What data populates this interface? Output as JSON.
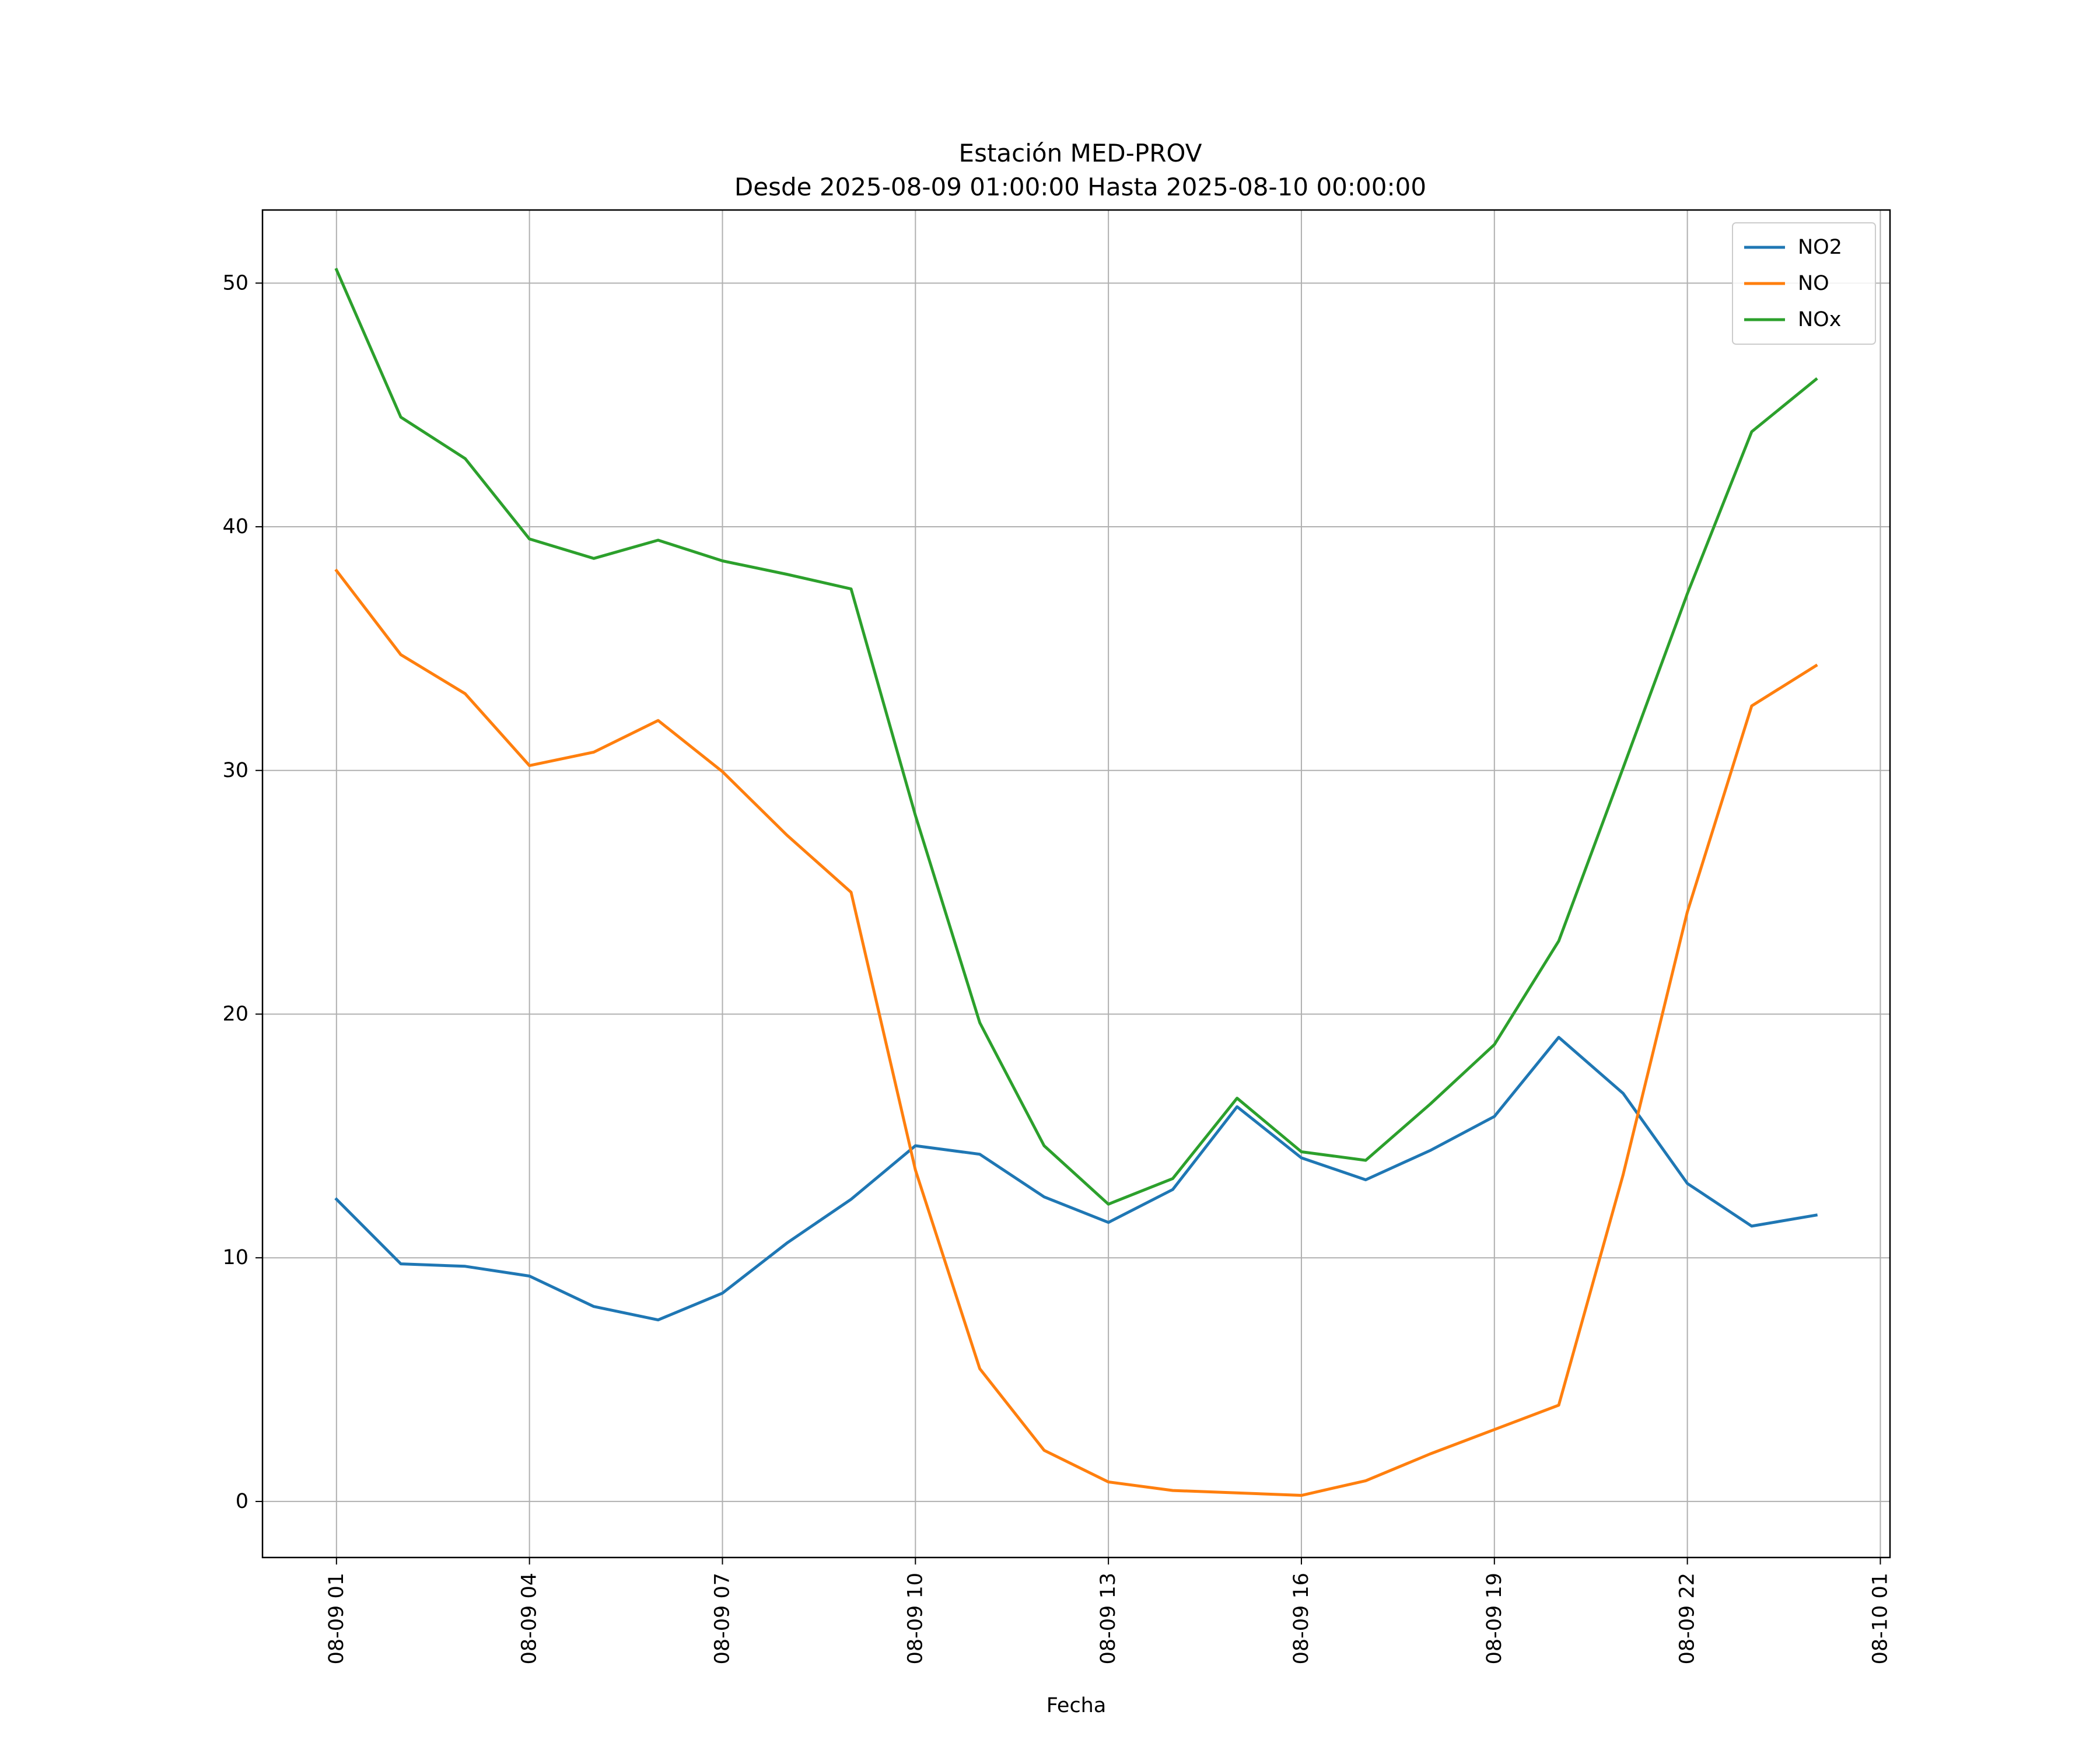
{
  "chart_data": {
    "type": "line",
    "title": "Estación MED-PROV",
    "subtitle": "Desde 2025-08-09 01:00:00 Hasta 2025-08-10 00:00:00",
    "xlabel": "Fecha",
    "ylabel": "",
    "x": [
      "2025-08-09 01:00",
      "2025-08-09 02:00",
      "2025-08-09 03:00",
      "2025-08-09 04:00",
      "2025-08-09 05:00",
      "2025-08-09 06:00",
      "2025-08-09 07:00",
      "2025-08-09 08:00",
      "2025-08-09 09:00",
      "2025-08-09 10:00",
      "2025-08-09 11:00",
      "2025-08-09 12:00",
      "2025-08-09 13:00",
      "2025-08-09 14:00",
      "2025-08-09 15:00",
      "2025-08-09 16:00",
      "2025-08-09 17:00",
      "2025-08-09 18:00",
      "2025-08-09 19:00",
      "2025-08-09 20:00",
      "2025-08-09 21:00",
      "2025-08-09 22:00",
      "2025-08-09 23:00",
      "2025-08-10 00:00"
    ],
    "x_ticks": [
      "08-09 01",
      "08-09 04",
      "08-09 07",
      "08-09 10",
      "08-09 13",
      "08-09 16",
      "08-09 19",
      "08-09 22",
      "08-10 01"
    ],
    "x_range": [
      "2025-08-08 23:51",
      "2025-08-10 01:09"
    ],
    "y_ticks": [
      0,
      10,
      20,
      30,
      40,
      50
    ],
    "ylim": [
      -2.3,
      53.0
    ],
    "grid": true,
    "legend_position": "top-right",
    "series": [
      {
        "name": "NO2",
        "color": "#1f77b4",
        "values": [
          12.4,
          9.75,
          9.65,
          9.25,
          8.0,
          7.45,
          8.55,
          10.6,
          12.4,
          14.6,
          14.25,
          12.5,
          11.45,
          12.8,
          16.2,
          14.1,
          13.2,
          14.4,
          15.8,
          19.05,
          16.75,
          13.05,
          11.3,
          11.75
        ]
      },
      {
        "name": "NO",
        "color": "#ff7f0e",
        "values": [
          38.2,
          34.75,
          33.15,
          30.2,
          30.75,
          32.05,
          29.95,
          27.35,
          25.0,
          13.6,
          5.45,
          2.1,
          0.8,
          0.45,
          0.35,
          0.25,
          0.85,
          1.95,
          2.95,
          3.95,
          13.4,
          24.2,
          32.65,
          34.3
        ]
      },
      {
        "name": "NOx",
        "color": "#2ca02c",
        "values": [
          50.55,
          44.5,
          42.8,
          39.5,
          38.7,
          39.45,
          38.6,
          38.05,
          37.45,
          28.15,
          19.65,
          14.6,
          12.2,
          13.25,
          16.55,
          14.35,
          14.0,
          16.3,
          18.75,
          23.0,
          30.1,
          37.25,
          43.9,
          46.05
        ]
      }
    ]
  }
}
